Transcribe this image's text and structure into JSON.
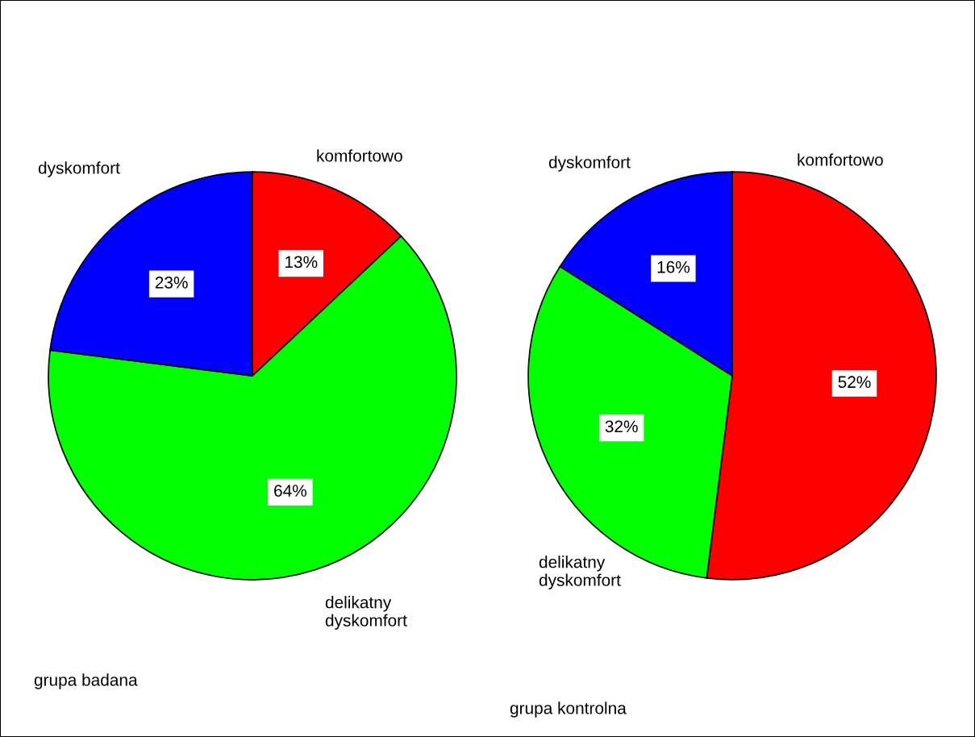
{
  "chart_data": [
    {
      "type": "pie",
      "title": "grupa badana",
      "categories": [
        "komfortowo",
        "delikatny\ndyskomfort",
        "dyskomfort"
      ],
      "values": [
        13,
        64,
        23
      ],
      "colors": [
        "#ff0000",
        "#00ff00",
        "#0000ff"
      ],
      "value_labels": [
        "13%",
        "64%",
        "23%"
      ],
      "legend": false
    },
    {
      "type": "pie",
      "title": "grupa kontrolna",
      "categories": [
        "komfortowo",
        "delikatny\ndyskomfort",
        "dyskomfort"
      ],
      "values": [
        52,
        32,
        16
      ],
      "colors": [
        "#ff0000",
        "#00ff00",
        "#0000ff"
      ],
      "value_labels": [
        "52%",
        "32%",
        "16%"
      ],
      "legend": false
    }
  ]
}
